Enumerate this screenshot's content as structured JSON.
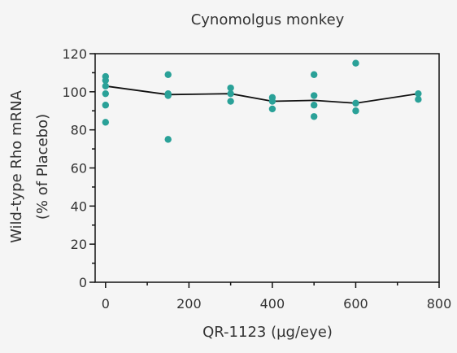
{
  "chart_data": {
    "type": "scatter",
    "title": "Cynomolgus monkey",
    "xlabel": "QR-1123 (µg/eye)",
    "ylabel_lines": [
      "Wild-type Rho mRNA",
      "(% of Placebo)"
    ],
    "xlim": [
      -25,
      800
    ],
    "ylim": [
      0,
      120
    ],
    "x_ticks": [
      0,
      200,
      400,
      600,
      800
    ],
    "y_ticks": [
      0,
      20,
      40,
      60,
      80,
      100,
      120
    ],
    "x_minor_ticks": [
      100,
      300,
      500,
      700
    ],
    "y_minor_ticks": [
      10,
      30,
      50,
      70,
      90,
      110
    ],
    "grid": false,
    "colors": {
      "points": "#2aa198",
      "line": "#111111",
      "axis": "#111111"
    },
    "series": [
      {
        "type": "scatter",
        "points": [
          {
            "x": 0,
            "y": 108
          },
          {
            "x": 0,
            "y": 106
          },
          {
            "x": 0,
            "y": 103
          },
          {
            "x": 0,
            "y": 99
          },
          {
            "x": 0,
            "y": 93
          },
          {
            "x": 0,
            "y": 84
          },
          {
            "x": 150,
            "y": 109
          },
          {
            "x": 150,
            "y": 99
          },
          {
            "x": 150,
            "y": 98
          },
          {
            "x": 150,
            "y": 75
          },
          {
            "x": 300,
            "y": 102
          },
          {
            "x": 300,
            "y": 99
          },
          {
            "x": 300,
            "y": 95
          },
          {
            "x": 400,
            "y": 97
          },
          {
            "x": 400,
            "y": 95
          },
          {
            "x": 400,
            "y": 91
          },
          {
            "x": 500,
            "y": 109
          },
          {
            "x": 500,
            "y": 98
          },
          {
            "x": 500,
            "y": 93
          },
          {
            "x": 500,
            "y": 87
          },
          {
            "x": 600,
            "y": 115
          },
          {
            "x": 600,
            "y": 94
          },
          {
            "x": 600,
            "y": 90
          },
          {
            "x": 750,
            "y": 99
          },
          {
            "x": 750,
            "y": 96
          }
        ]
      },
      {
        "type": "line",
        "points": [
          {
            "x": 0,
            "y": 103
          },
          {
            "x": 150,
            "y": 98.5
          },
          {
            "x": 300,
            "y": 99
          },
          {
            "x": 400,
            "y": 95
          },
          {
            "x": 500,
            "y": 95.5
          },
          {
            "x": 600,
            "y": 94
          },
          {
            "x": 750,
            "y": 99
          }
        ]
      }
    ]
  }
}
